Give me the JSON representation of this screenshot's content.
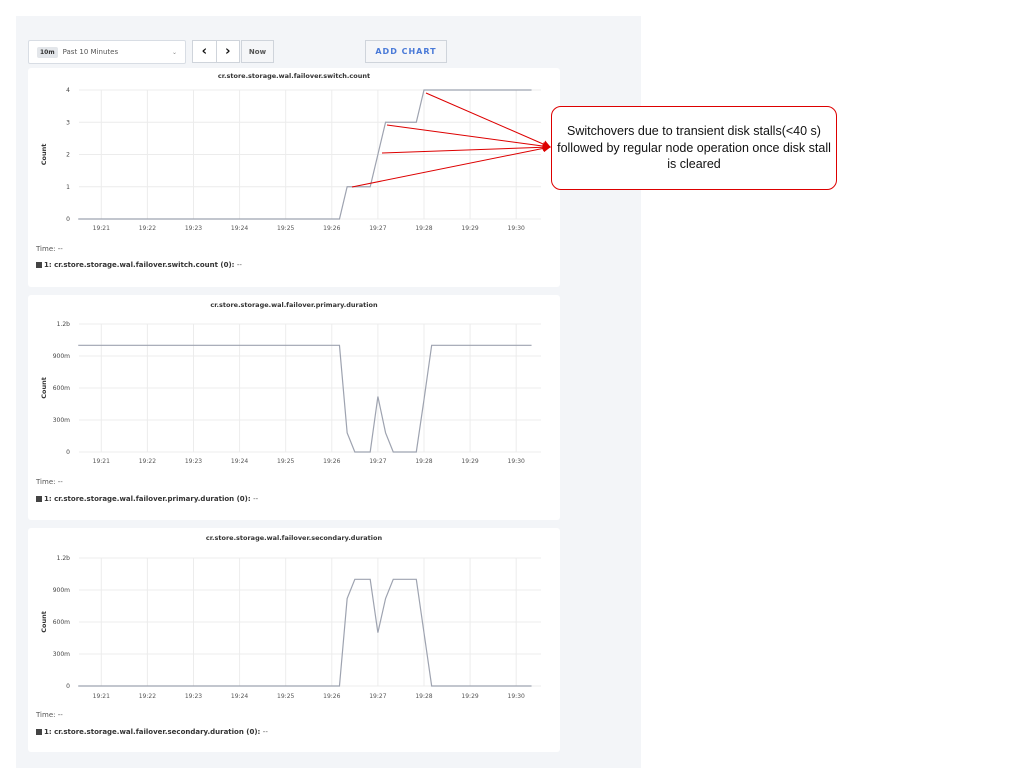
{
  "toolbar": {
    "time_badge": "10m",
    "time_range": "Past 10 Minutes",
    "prev_icon": "chevron-left",
    "next_icon": "chevron-right",
    "now_label": "Now",
    "add_chart_label": "ADD CHART"
  },
  "annotation": {
    "text": "Switchovers due to transient disk stalls(<40 s) followed by regular node operation once disk stall is cleared",
    "color": "#dd0000"
  },
  "chart_data": [
    {
      "type": "line",
      "title": "cr.store.storage.wal.failover.switch.count",
      "ylabel": "Count",
      "yticks": [
        "0",
        "1",
        "2",
        "3",
        "4"
      ],
      "ylim": [
        0,
        4
      ],
      "xticks": [
        "19:21",
        "19:22",
        "19:23",
        "19:24",
        "19:25",
        "19:26",
        "19:27",
        "19:28",
        "19:29",
        "19:30"
      ],
      "time_label": "Time:",
      "time_value": "--",
      "legend": "1: cr.store.storage.wal.failover.switch.count (0):",
      "legend_value": "--",
      "series": [
        {
          "x": [
            "19:20:30",
            "19:26:10",
            "19:26:20",
            "19:26:50",
            "19:27:00",
            "19:27:10",
            "19:27:50",
            "19:28:00",
            "19:30:20"
          ],
          "y": [
            0,
            0,
            1,
            1,
            2,
            3,
            3,
            4,
            4
          ]
        }
      ]
    },
    {
      "type": "line",
      "title": "cr.store.storage.wal.failover.primary.duration",
      "ylabel": "Count",
      "yticks": [
        "0",
        "300m",
        "600m",
        "900m",
        "1.2b"
      ],
      "ylim": [
        0,
        1.2
      ],
      "xticks": [
        "19:21",
        "19:22",
        "19:23",
        "19:24",
        "19:25",
        "19:26",
        "19:27",
        "19:28",
        "19:29",
        "19:30"
      ],
      "time_label": "Time:",
      "time_value": "--",
      "legend": "1: cr.store.storage.wal.failover.primary.duration (0):",
      "legend_value": "--",
      "series": [
        {
          "x": [
            "19:20:30",
            "19:26:10",
            "19:26:20",
            "19:26:30",
            "19:26:50",
            "19:27:00",
            "19:27:10",
            "19:27:20",
            "19:27:50",
            "19:28:00",
            "19:28:10",
            "19:30:20"
          ],
          "y": [
            1,
            1,
            0.18,
            0,
            0,
            0.52,
            0.18,
            0,
            0,
            0.49,
            1,
            1
          ]
        }
      ]
    },
    {
      "type": "line",
      "title": "cr.store.storage.wal.failover.secondary.duration",
      "ylabel": "Count",
      "yticks": [
        "0",
        "300m",
        "600m",
        "900m",
        "1.2b"
      ],
      "ylim": [
        0,
        1.2
      ],
      "xticks": [
        "19:21",
        "19:22",
        "19:23",
        "19:24",
        "19:25",
        "19:26",
        "19:27",
        "19:28",
        "19:29",
        "19:30"
      ],
      "time_label": "Time:",
      "time_value": "--",
      "legend": "1: cr.store.storage.wal.failover.secondary.duration (0):",
      "legend_value": "--",
      "series": [
        {
          "x": [
            "19:20:30",
            "19:26:10",
            "19:26:20",
            "19:26:30",
            "19:26:50",
            "19:27:00",
            "19:27:10",
            "19:27:20",
            "19:27:50",
            "19:28:00",
            "19:28:10",
            "19:30:20"
          ],
          "y": [
            0,
            0,
            0.82,
            1,
            1,
            0.5,
            0.82,
            1,
            1,
            0.5,
            0,
            0
          ]
        }
      ]
    }
  ]
}
